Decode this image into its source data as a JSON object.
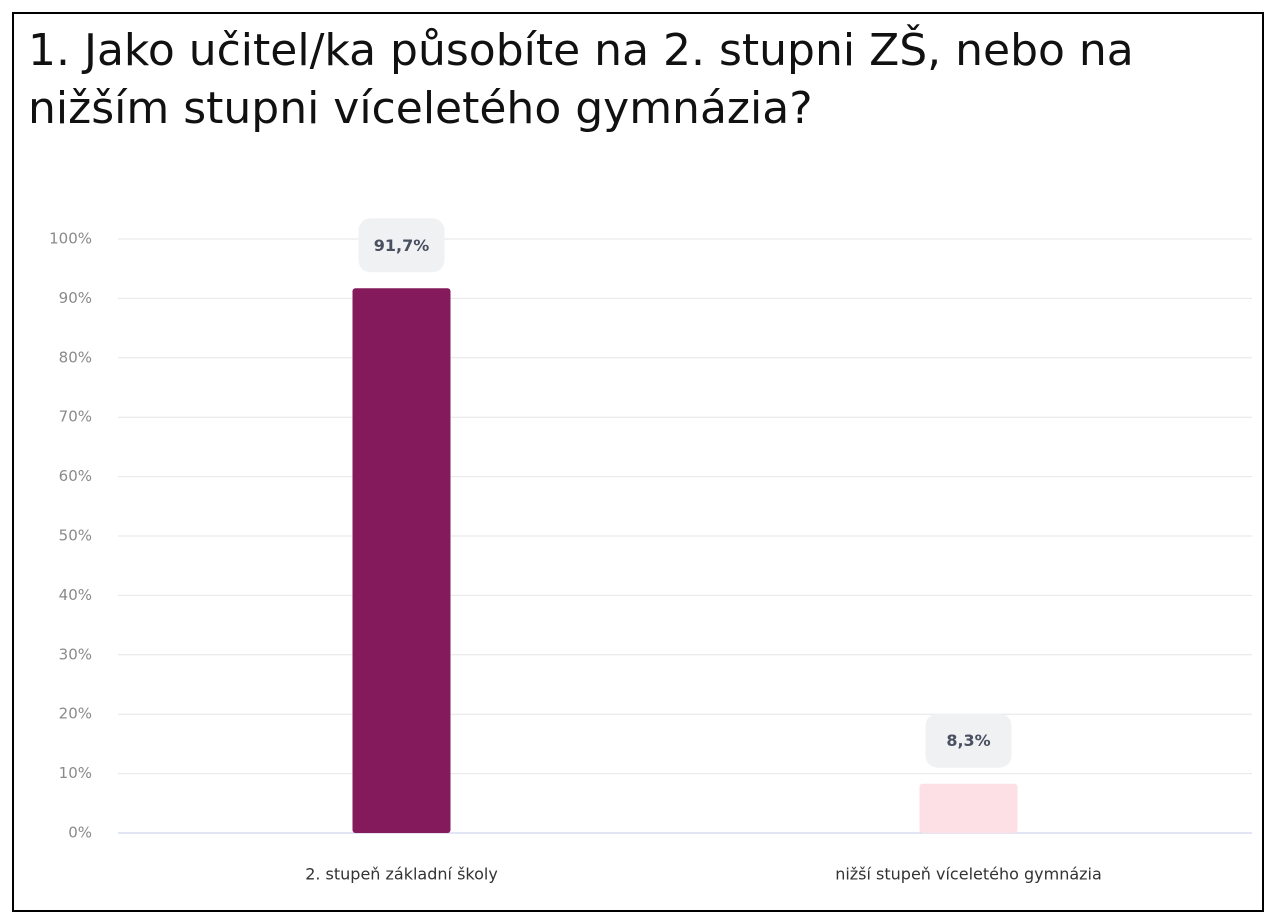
{
  "chart_data": {
    "type": "bar",
    "title": "1. Jako učitel/ka působíte na 2. stupni ZŠ, nebo na nižším stupni víceletého gymnázia?",
    "categories": [
      "2. stupeň základní školy",
      "nižší stupeň víceletého gymnázia"
    ],
    "values": [
      91.7,
      8.3
    ],
    "value_labels": [
      "91,7%",
      "8,3%"
    ],
    "colors": [
      "#841a5c",
      "#fde0e6"
    ],
    "ylim": [
      0,
      100
    ],
    "yticks": [
      {
        "value": 0,
        "label": "0%"
      },
      {
        "value": 10,
        "label": "10%"
      },
      {
        "value": 20,
        "label": "20%"
      },
      {
        "value": 30,
        "label": "30%"
      },
      {
        "value": 40,
        "label": "40%"
      },
      {
        "value": 50,
        "label": "50%"
      },
      {
        "value": 60,
        "label": "60%"
      },
      {
        "value": 70,
        "label": "70%"
      },
      {
        "value": 80,
        "label": "80%"
      },
      {
        "value": 90,
        "label": "90%"
      },
      {
        "value": 100,
        "label": "100%"
      }
    ],
    "grid": true
  }
}
